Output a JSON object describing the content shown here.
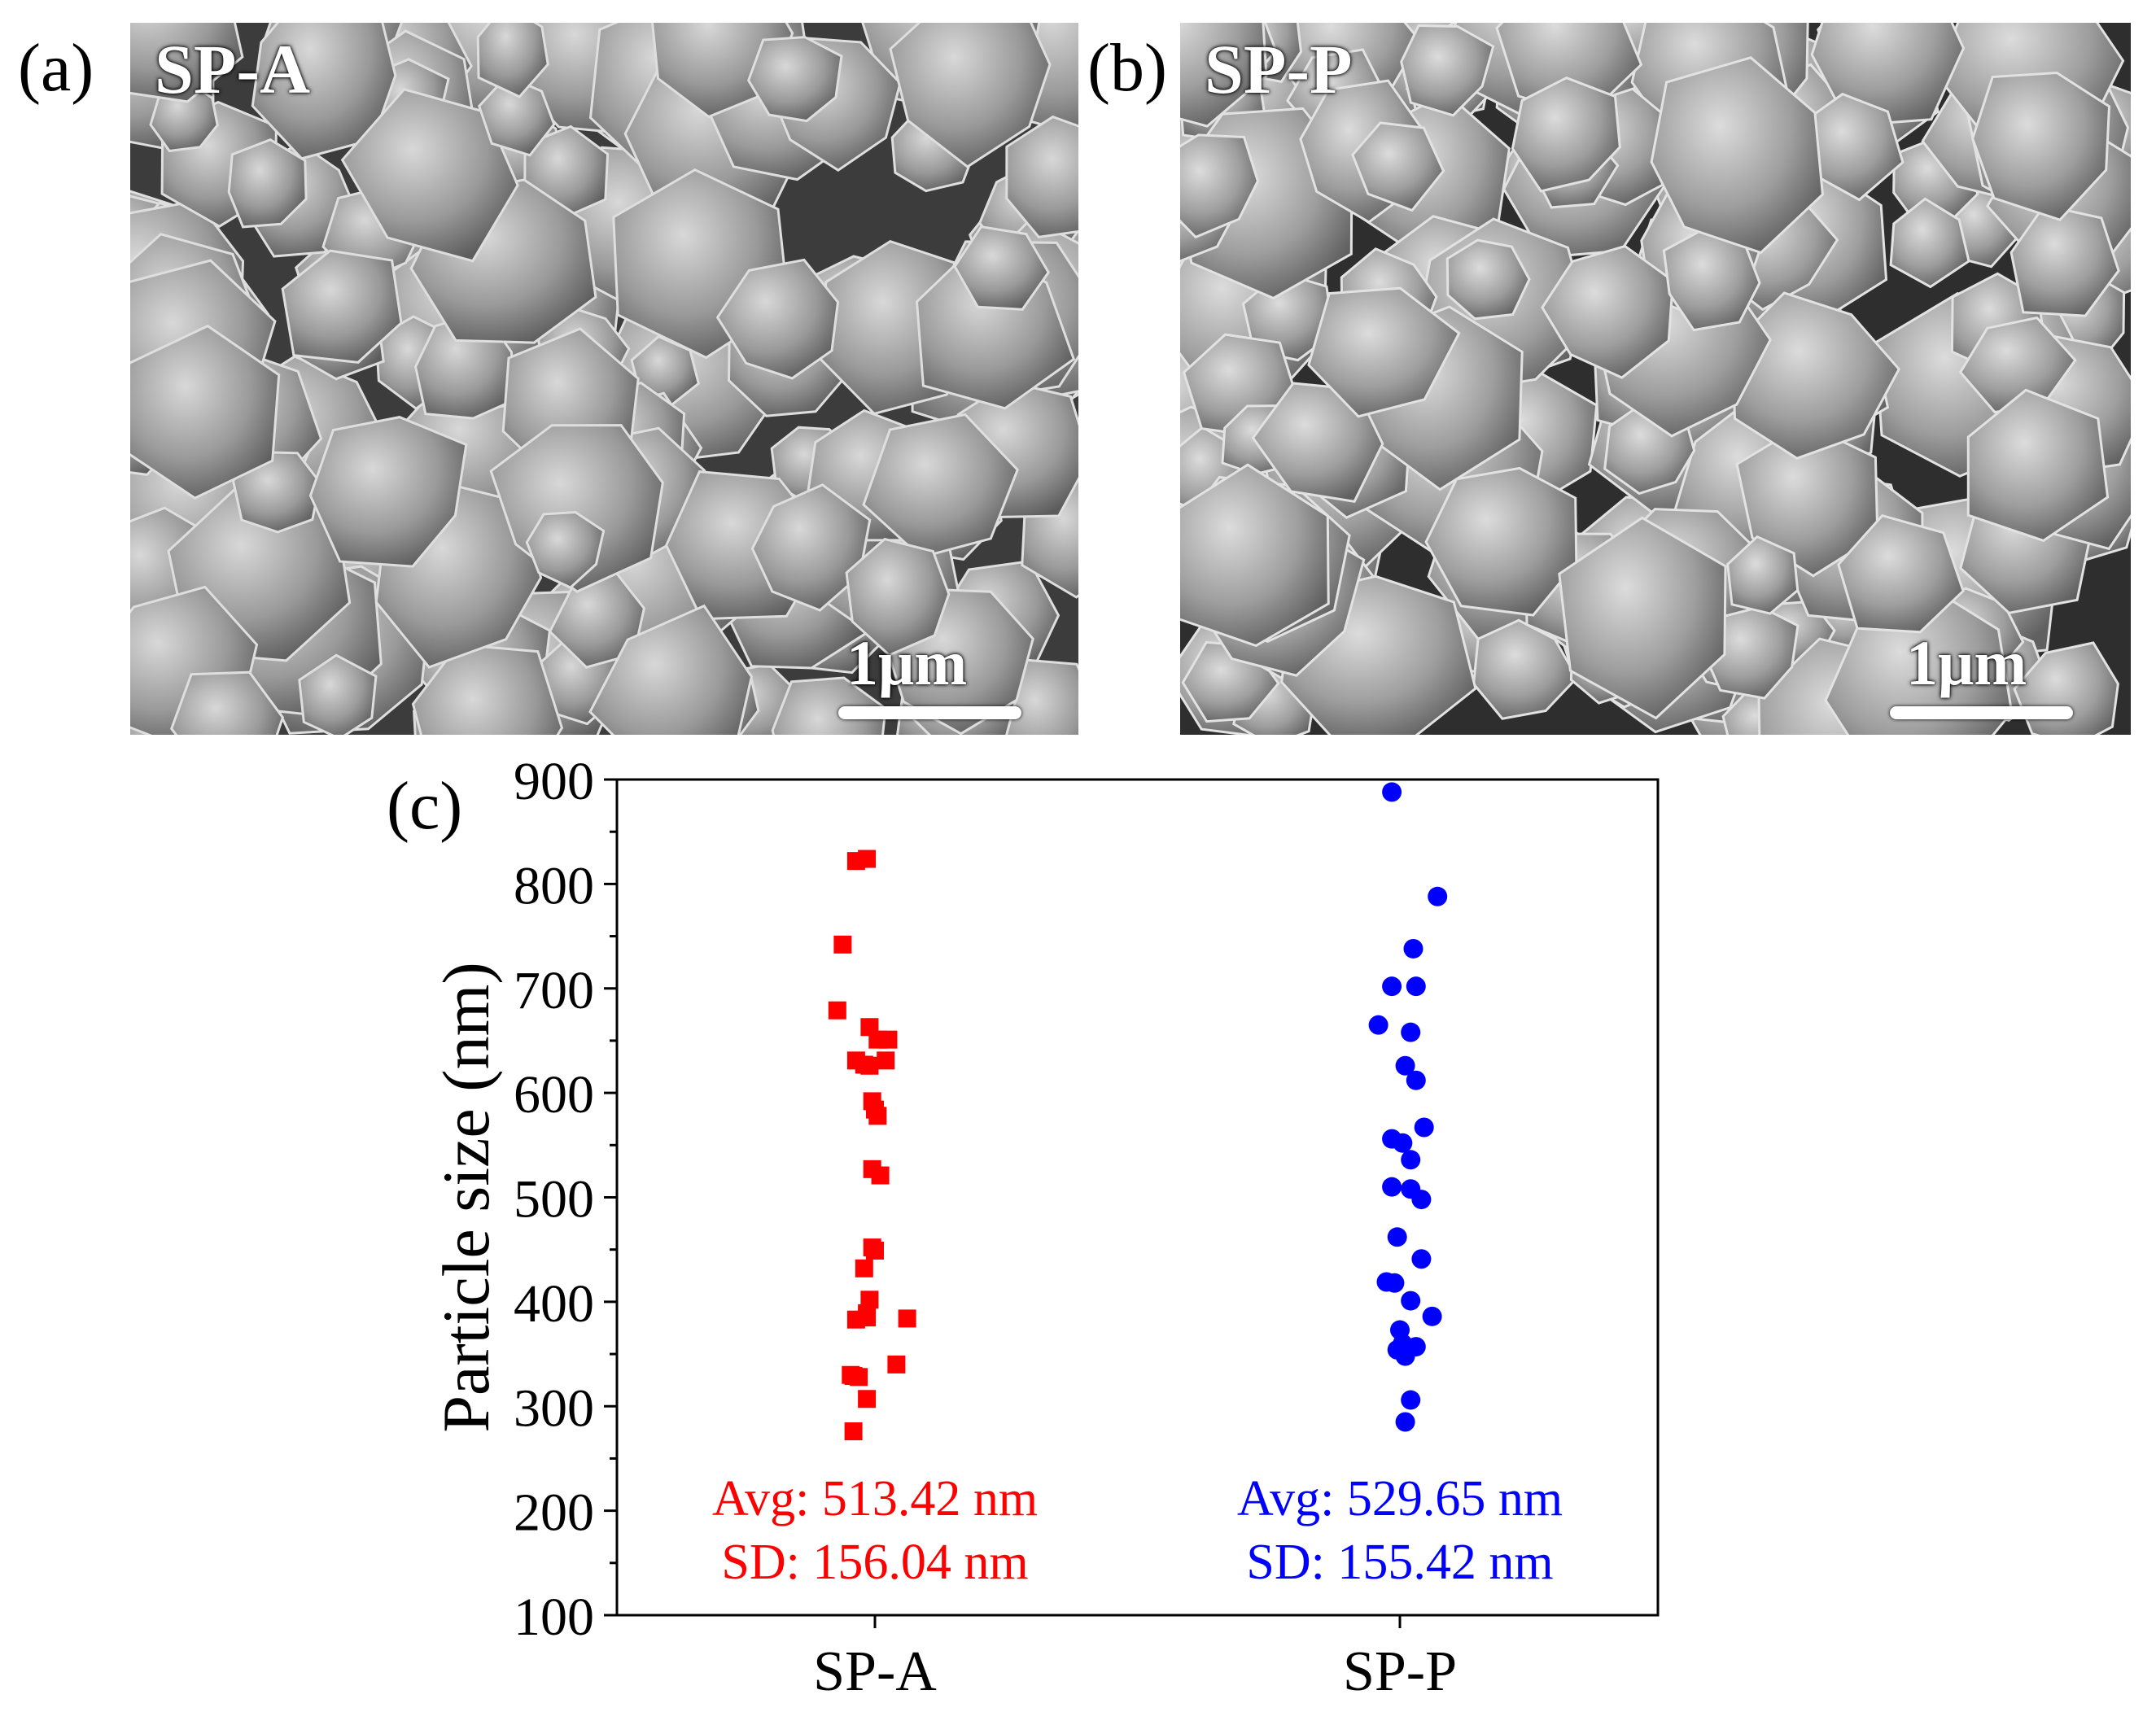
{
  "panels": {
    "a": {
      "label": "(a)",
      "sample": "SP-A",
      "scale": "1μm"
    },
    "b": {
      "label": "(b)",
      "sample": "SP-P",
      "scale": "1μm"
    },
    "c": {
      "label": "(c)"
    }
  },
  "chart_data": {
    "type": "scatter",
    "title": "",
    "xlabel": "",
    "ylabel": "Particle size (nm)",
    "categories": [
      "SP-A",
      "SP-P"
    ],
    "ylim": [
      100,
      900
    ],
    "yticks": [
      "100",
      "200",
      "300",
      "400",
      "500",
      "600",
      "700",
      "800",
      "900"
    ],
    "grid": false,
    "series": [
      {
        "category": "SP-A",
        "marker": "square",
        "color": "#ff0000",
        "points": [
          [
            -0.07,
            822
          ],
          [
            -0.03,
            824
          ],
          [
            -0.12,
            742
          ],
          [
            -0.14,
            679
          ],
          [
            -0.02,
            663
          ],
          [
            0.01,
            651
          ],
          [
            0.05,
            651
          ],
          [
            -0.07,
            631
          ],
          [
            -0.04,
            627
          ],
          [
            0.04,
            631
          ],
          [
            -0.02,
            626
          ],
          [
            -0.01,
            592
          ],
          [
            0.0,
            584
          ],
          [
            0.01,
            578
          ],
          [
            -0.01,
            527
          ],
          [
            0.02,
            521
          ],
          [
            -0.01,
            452
          ],
          [
            0.0,
            449
          ],
          [
            -0.04,
            432
          ],
          [
            -0.02,
            402
          ],
          [
            -0.03,
            389
          ],
          [
            -0.03,
            385
          ],
          [
            -0.07,
            383
          ],
          [
            0.12,
            384
          ],
          [
            -0.09,
            330
          ],
          [
            -0.08,
            329
          ],
          [
            -0.06,
            328
          ],
          [
            0.08,
            340
          ],
          [
            -0.03,
            307
          ],
          [
            -0.08,
            276
          ]
        ],
        "annotation": {
          "avg": "Avg: 513.42 nm",
          "sd": "SD: 156.04 nm"
        }
      },
      {
        "category": "SP-P",
        "marker": "circle",
        "color": "#0000ff",
        "points": [
          [
            -0.03,
            888
          ],
          [
            0.14,
            788
          ],
          [
            0.05,
            738
          ],
          [
            -0.03,
            702
          ],
          [
            0.06,
            702
          ],
          [
            -0.08,
            665
          ],
          [
            0.04,
            658
          ],
          [
            0.02,
            626
          ],
          [
            0.06,
            612
          ],
          [
            -0.03,
            556
          ],
          [
            0.01,
            552
          ],
          [
            0.09,
            567
          ],
          [
            0.04,
            536
          ],
          [
            -0.03,
            510
          ],
          [
            0.04,
            508
          ],
          [
            0.08,
            498
          ],
          [
            -0.01,
            462
          ],
          [
            0.08,
            441
          ],
          [
            -0.05,
            419
          ],
          [
            -0.02,
            418
          ],
          [
            0.04,
            401
          ],
          [
            0.12,
            386
          ],
          [
            0.0,
            373
          ],
          [
            0.01,
            360
          ],
          [
            0.03,
            354
          ],
          [
            0.06,
            357
          ],
          [
            -0.01,
            354
          ],
          [
            0.02,
            348
          ],
          [
            0.04,
            306
          ],
          [
            0.02,
            285
          ]
        ],
        "annotation": {
          "avg": "Avg: 529.65 nm",
          "sd": "SD: 155.42 nm"
        }
      }
    ]
  }
}
